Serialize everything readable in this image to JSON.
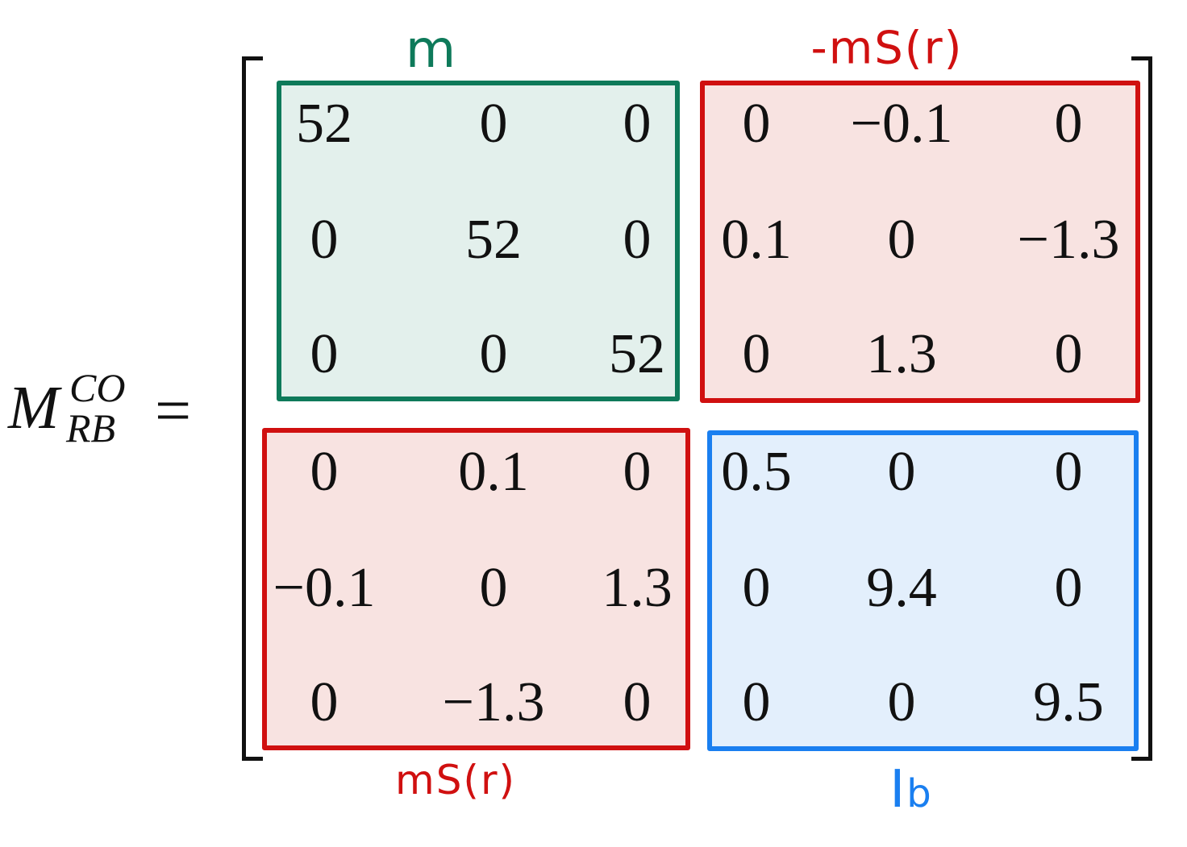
{
  "lhs": {
    "symbol": "M",
    "superscript": "CO",
    "subscript": "RB",
    "equals": "="
  },
  "colors": {
    "m_block_border": "#0e7a5a",
    "m_block_fill": "#e3f0ec",
    "coupling_border": "#d01010",
    "coupling_fill": "#f8e3e1",
    "inertia_border": "#1a7ff0",
    "inertia_fill": "#e3effc"
  },
  "labels": {
    "top_left": "m",
    "top_right": "-mS(r)",
    "bottom_left": "mS(r)",
    "bottom_right": "I",
    "bottom_right_sub": "b"
  },
  "matrix": {
    "rows": [
      [
        "52",
        "0",
        "0",
        "0",
        "−0.1",
        "0"
      ],
      [
        "0",
        "52",
        "0",
        "0.1",
        "0",
        "−1.3"
      ],
      [
        "0",
        "0",
        "52",
        "0",
        "1.3",
        "0"
      ],
      [
        "0",
        "0.1",
        "0",
        "0.5",
        "0",
        "0"
      ],
      [
        "−0.1",
        "0",
        "1.3",
        "0",
        "9.4",
        "0"
      ],
      [
        "0",
        "−1.3",
        "0",
        "0",
        "0",
        "9.5"
      ]
    ]
  }
}
